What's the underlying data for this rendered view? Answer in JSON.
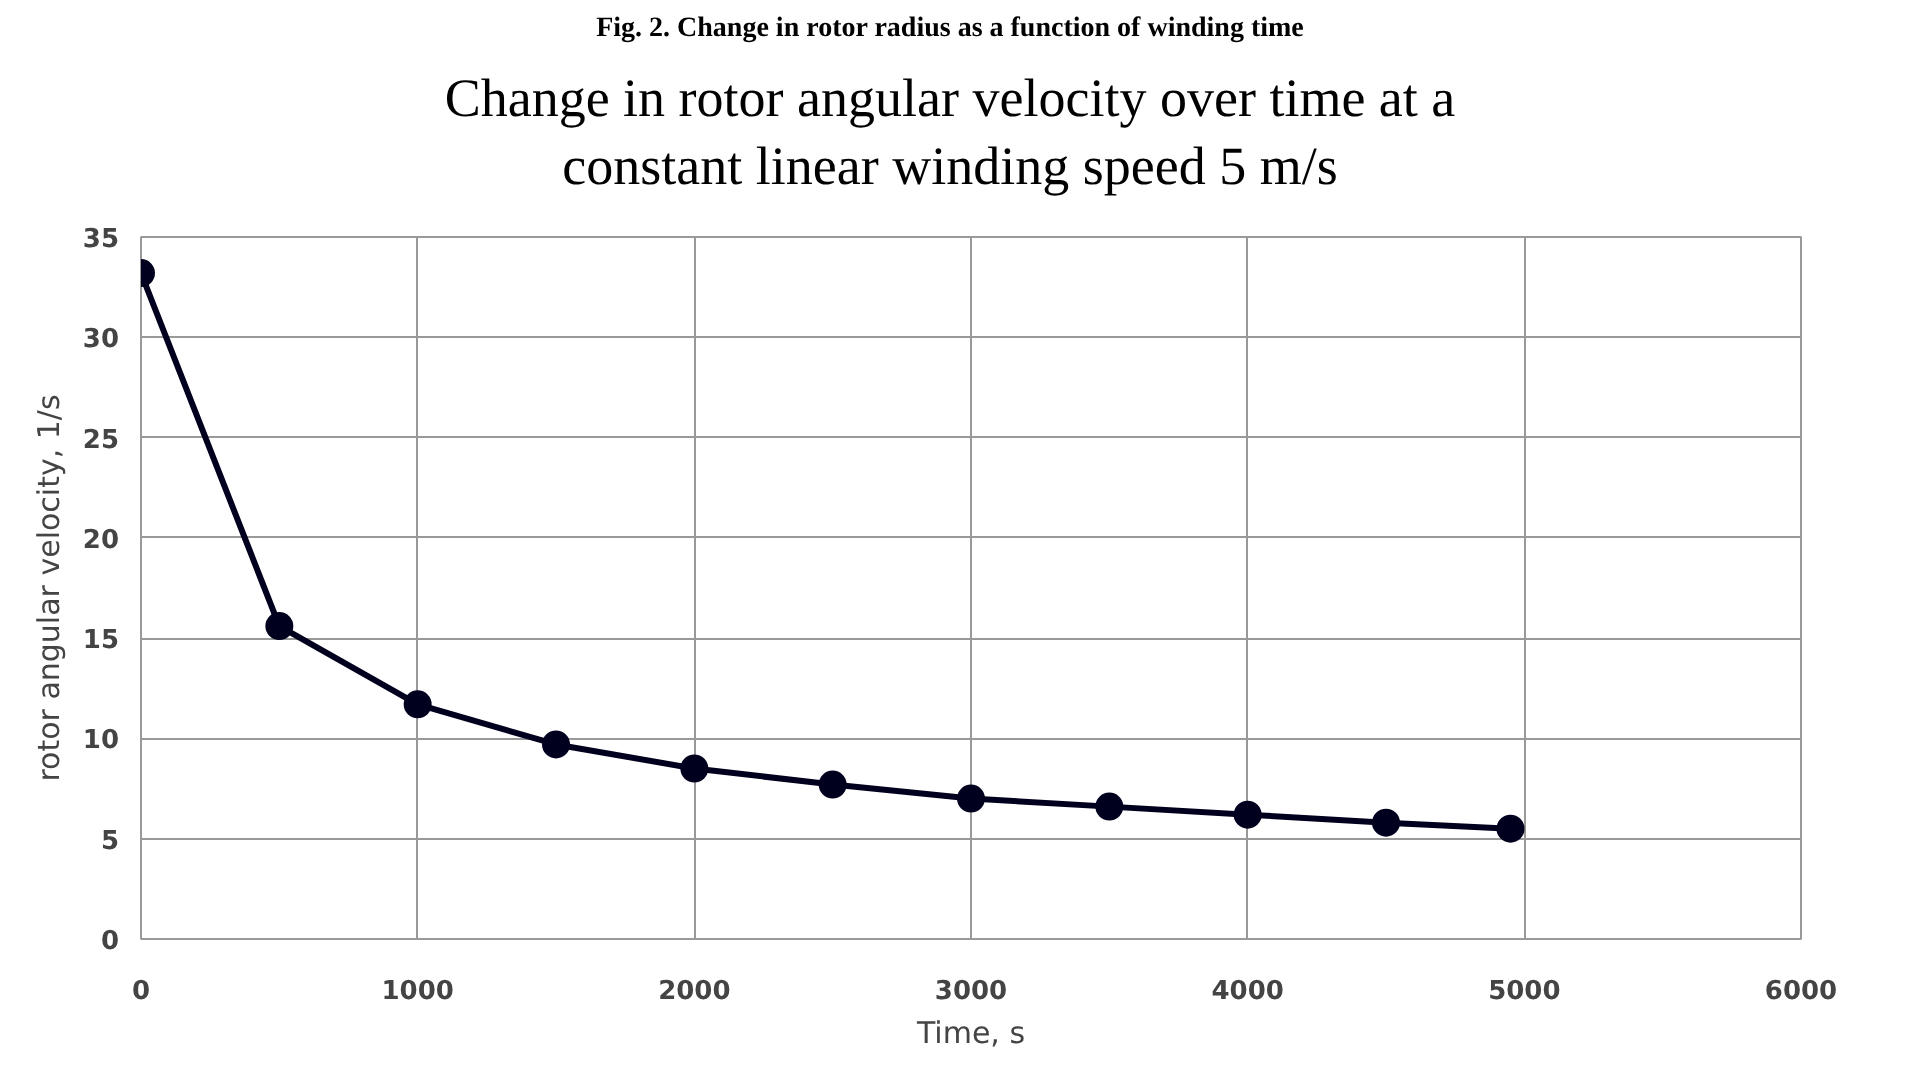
{
  "chart_data": {
    "type": "line",
    "title": "Change in rotor angular velocity over time at a constant linear winding speed 5 m/s",
    "annotations": [
      "Fig. 2. Change in rotor radius as a function of winding time"
    ],
    "xlabel": "Time, s",
    "ylabel": "rotor angular velocity, 1/s",
    "x": [
      0,
      500,
      1000,
      1500,
      2000,
      2500,
      3000,
      3500,
      4000,
      4500,
      4950
    ],
    "series": [
      {
        "color": "#00001e",
        "values": [
          33.2,
          15.6,
          11.7,
          9.7,
          8.5,
          7.7,
          7.0,
          6.6,
          6.2,
          5.8,
          5.5
        ]
      }
    ],
    "xlim": [
      0,
      6000
    ],
    "xticks": [
      0,
      1000,
      2000,
      3000,
      4000,
      5000,
      6000
    ],
    "ylim": [
      0,
      35
    ],
    "yticks": [
      0,
      5,
      10,
      15,
      20,
      25,
      30,
      35
    ],
    "grid": true,
    "marker": "circle",
    "line_style": "solid"
  }
}
